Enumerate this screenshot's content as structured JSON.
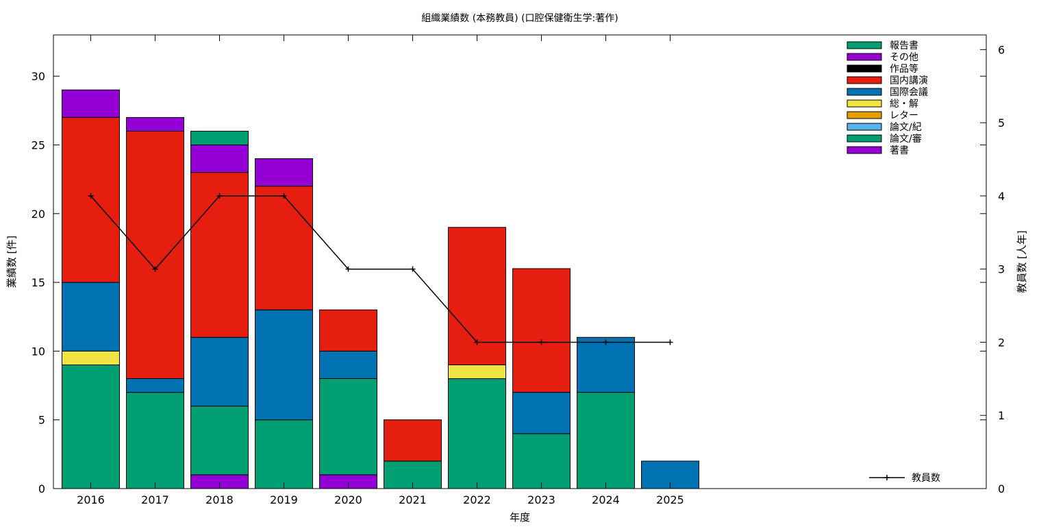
{
  "chart_data": {
    "type": "bar",
    "stacked": true,
    "title": "組織業績数 (本務教員) (口腔保健衛生学:著作)",
    "xlabel": "年度",
    "ylabel": "業績数 [件]",
    "y2label": "教員数 [人年]",
    "ylim": [
      0,
      33
    ],
    "y2lim": [
      0,
      6.2
    ],
    "yticks": [
      0,
      5,
      10,
      15,
      20,
      25,
      30
    ],
    "y2ticks": [
      0,
      1,
      2,
      3,
      4,
      5,
      6
    ],
    "grid": false,
    "legend_position": "top-right",
    "categories": [
      "2016",
      "2017",
      "2018",
      "2019",
      "2020",
      "2021",
      "2022",
      "2023",
      "2024",
      "2025"
    ],
    "series": [
      {
        "name": "著書",
        "color": "#9400d3",
        "values": [
          0,
          0,
          1,
          0,
          1,
          0,
          0,
          0,
          0,
          0
        ]
      },
      {
        "name": "論文/審",
        "color": "#009e73",
        "values": [
          9,
          7,
          5,
          5,
          7,
          2,
          8,
          4,
          7,
          0
        ]
      },
      {
        "name": "論文/紀",
        "color": "#56b4e9",
        "values": [
          0,
          0,
          0,
          0,
          0,
          0,
          0,
          0,
          0,
          0
        ]
      },
      {
        "name": "レター",
        "color": "#e69f00",
        "values": [
          0,
          0,
          0,
          0,
          0,
          0,
          0,
          0,
          0,
          0
        ]
      },
      {
        "name": "総・解",
        "color": "#f0e442",
        "values": [
          1,
          0,
          0,
          0,
          0,
          0,
          1,
          0,
          0,
          0
        ]
      },
      {
        "name": "国際会議",
        "color": "#0072b2",
        "values": [
          5,
          1,
          5,
          8,
          2,
          0,
          0,
          3,
          4,
          2
        ]
      },
      {
        "name": "国内講演",
        "color": "#e51e10",
        "values": [
          12,
          18,
          12,
          9,
          3,
          3,
          10,
          9,
          0,
          0
        ]
      },
      {
        "name": "作品等",
        "color": "#000000",
        "values": [
          0,
          0,
          0,
          0,
          0,
          0,
          0,
          0,
          0,
          0
        ]
      },
      {
        "name": "その他",
        "color": "#9400d3",
        "values": [
          2,
          1,
          2,
          2,
          0,
          0,
          0,
          0,
          0,
          0
        ]
      },
      {
        "name": "報告書",
        "color": "#009e73",
        "values": [
          0,
          0,
          1,
          0,
          0,
          0,
          0,
          0,
          0,
          0
        ]
      }
    ],
    "legend_order": [
      "報告書",
      "その他",
      "作品等",
      "国内講演",
      "国際会議",
      "総・解",
      "レター",
      "論文/紀",
      "論文/審",
      "著書"
    ],
    "line_series": {
      "name": "教員数",
      "color": "#000000",
      "axis": "y2",
      "x": [
        "2016",
        "2017",
        "2018",
        "2019",
        "2020",
        "2021",
        "2022",
        "2023",
        "2024",
        "2025"
      ],
      "values": [
        4,
        3,
        4,
        4,
        3,
        3,
        2,
        2,
        2,
        2
      ]
    }
  }
}
